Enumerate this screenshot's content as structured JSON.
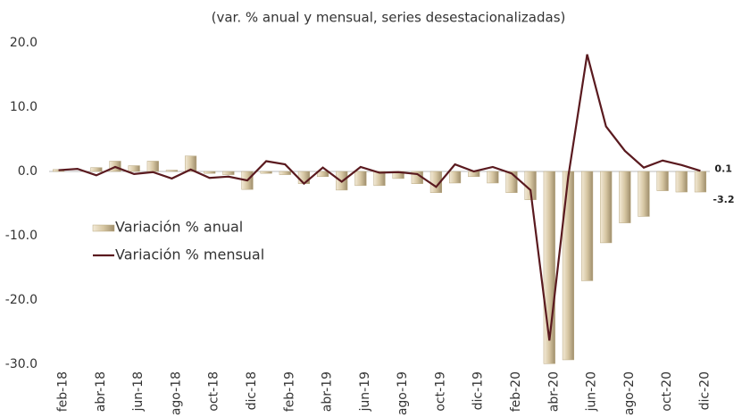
{
  "chart_data": {
    "type": "bar-line",
    "title": "(var. % anual y mensual, series desestacionalizadas)",
    "categories": [
      "feb-18",
      null,
      "abr-18",
      null,
      "jun-18",
      null,
      "ago-18",
      null,
      "oct-18",
      null,
      "dic-18",
      null,
      "feb-19",
      null,
      "abr-19",
      null,
      "jun-19",
      null,
      "ago-19",
      null,
      "oct-19",
      null,
      "dic-19",
      null,
      "feb-20",
      null,
      "abr-20",
      null,
      "jun-20",
      null,
      "ago-20",
      null,
      "oct-20",
      null,
      "dic-20"
    ],
    "series": [
      {
        "name": "Variación % anual",
        "type": "bar",
        "color": "#d6c6a2",
        "values": [
          0.3,
          0,
          0.6,
          1.6,
          0.9,
          1.6,
          0.2,
          2.4,
          -0.3,
          -0.5,
          -2.8,
          -0.3,
          -0.5,
          -1.9,
          -0.8,
          -2.9,
          -2.2,
          -2.2,
          -1.1,
          -1.9,
          -3.3,
          -1.8,
          -0.8,
          -1.8,
          -3.3,
          -4.4,
          -29.9,
          -29.3,
          -17.0,
          -11.1,
          -8.0,
          -7.0,
          -3.0,
          -3.2,
          -3.2
        ]
      },
      {
        "name": "Variación % mensual",
        "type": "line",
        "color": "#5a1a1f",
        "values": [
          0.2,
          0.4,
          -0.6,
          0.7,
          -0.4,
          -0.1,
          -1.1,
          0.3,
          -1.0,
          -0.8,
          -1.4,
          1.6,
          1.1,
          -1.9,
          0.6,
          -1.6,
          0.7,
          -0.2,
          -0.1,
          -0.4,
          -2.4,
          1.1,
          0.0,
          0.7,
          -0.3,
          -2.9,
          -26.3,
          -0.8,
          18.2,
          7.0,
          3.2,
          0.6,
          1.7,
          1.0,
          0.1
        ]
      }
    ],
    "ylim": [
      -30,
      20
    ],
    "yticks": [
      {
        "value": -30,
        "label": "-30.0"
      },
      {
        "value": -20,
        "label": "-20.0"
      },
      {
        "value": -10,
        "label": "-10.0"
      },
      {
        "value": 0,
        "label": "0.0"
      },
      {
        "value": 10,
        "label": "10.0"
      },
      {
        "value": 20,
        "label": "20.0"
      }
    ],
    "grid": false
  }
}
